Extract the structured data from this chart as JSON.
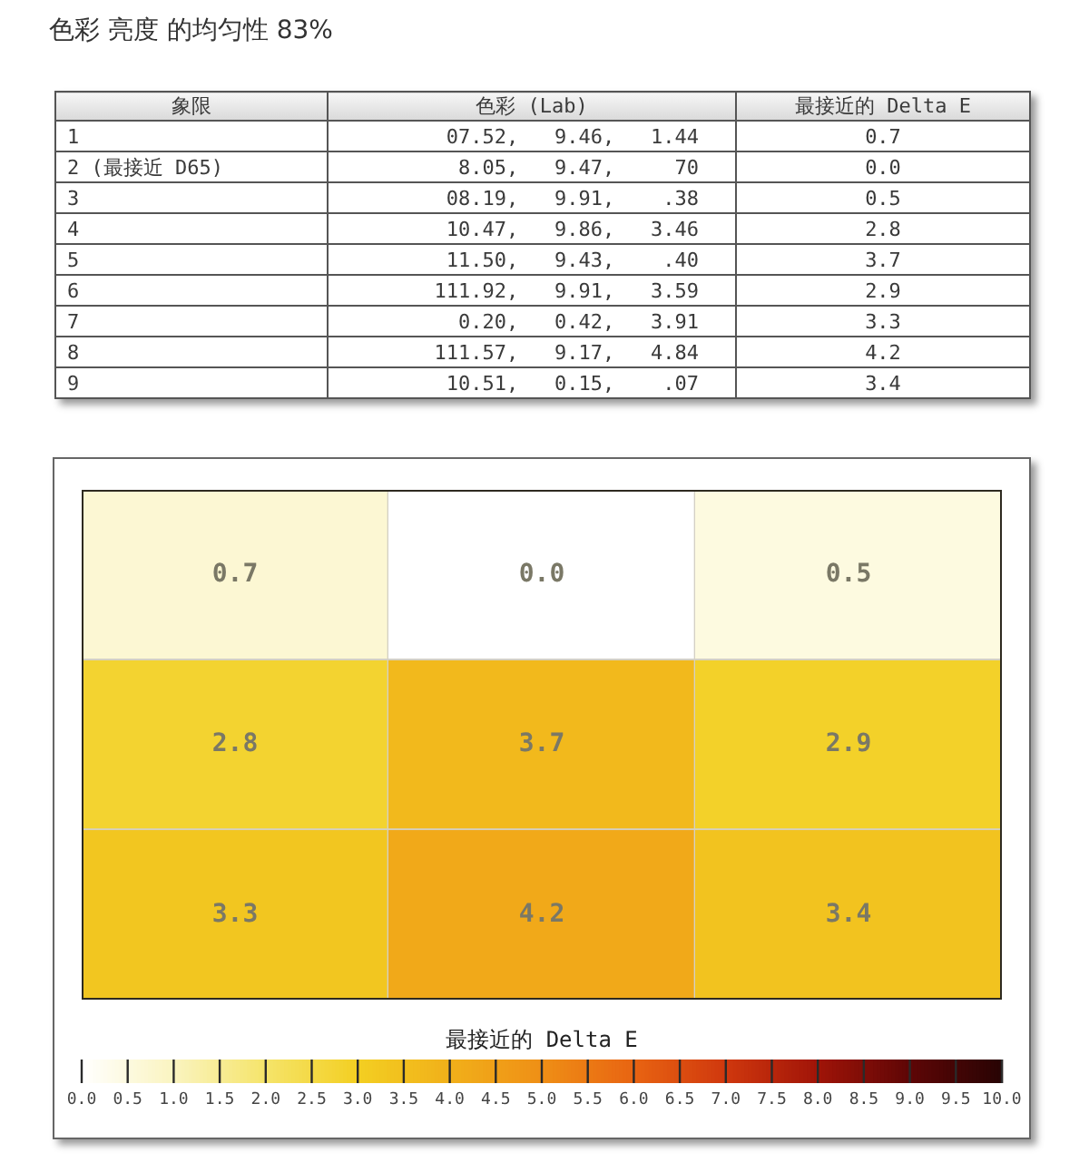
{
  "chart_data": [
    {
      "type": "other",
      "title": "色彩 亮度 的均匀性 83%",
      "ylabel": "象限",
      "categories": [
        "色彩 (Lab)",
        "最接近的 Delta E"
      ],
      "y_categories": [
        "1",
        "2 (最接近 D65)",
        "3",
        "4",
        "5",
        "6",
        "7",
        "8",
        "9"
      ],
      "cell_labels": [
        [
          "07.52,   9.46,   1.44",
          "0.7"
        ],
        [
          "8.05,   9.47,     70",
          "0.0"
        ],
        [
          "08.19,   9.91,    .38",
          "0.5"
        ],
        [
          "10.47,   9.86,   3.46",
          "2.8"
        ],
        [
          "11.50,   9.43,    .40",
          "3.7"
        ],
        [
          "111.92,   9.91,   3.59",
          "2.9"
        ],
        [
          "0.20,   0.42,   3.91",
          "3.3"
        ],
        [
          "111.57,   9.17,   4.84",
          "4.2"
        ],
        [
          "10.51,   0.15,    .07",
          "3.4"
        ]
      ]
    },
    {
      "type": "heatmap",
      "categories": [
        null,
        null,
        null
      ],
      "y_categories": [
        null,
        null,
        null
      ],
      "cells": [
        [
          0.7,
          0.0,
          0.5
        ],
        [
          2.8,
          3.7,
          2.9
        ],
        [
          3.3,
          4.2,
          3.4
        ]
      ],
      "cell_labels": [
        [
          "0.7",
          "0.0",
          "0.5"
        ],
        [
          "2.8",
          "3.7",
          "2.9"
        ],
        [
          "3.3",
          "4.2",
          "3.4"
        ]
      ],
      "clabel": "最接近的 Delta E",
      "clim": [
        0,
        10
      ],
      "cticks": [
        {
          "value": 0,
          "label": "0.0"
        },
        {
          "value": 0.5,
          "label": "0.5"
        },
        {
          "value": 1,
          "label": "1.0"
        },
        {
          "value": 1.5,
          "label": "1.5"
        },
        {
          "value": 2,
          "label": "2.0"
        },
        {
          "value": 2.5,
          "label": "2.5"
        },
        {
          "value": 3,
          "label": "3.0"
        },
        {
          "value": 3.5,
          "label": "3.5"
        },
        {
          "value": 4,
          "label": "4.0"
        },
        {
          "value": 4.5,
          "label": "4.5"
        },
        {
          "value": 5,
          "label": "5.0"
        },
        {
          "value": 5.5,
          "label": "5.5"
        },
        {
          "value": 6,
          "label": "6.0"
        },
        {
          "value": 6.5,
          "label": "6.5"
        },
        {
          "value": 7,
          "label": "7.0"
        },
        {
          "value": 7.5,
          "label": "7.5"
        },
        {
          "value": 8,
          "label": "8.0"
        },
        {
          "value": 8.5,
          "label": "8.5"
        },
        {
          "value": 9,
          "label": "9.0"
        },
        {
          "value": 9.5,
          "label": "9.5"
        },
        {
          "value": 10,
          "label": "10.0"
        }
      ]
    }
  ]
}
